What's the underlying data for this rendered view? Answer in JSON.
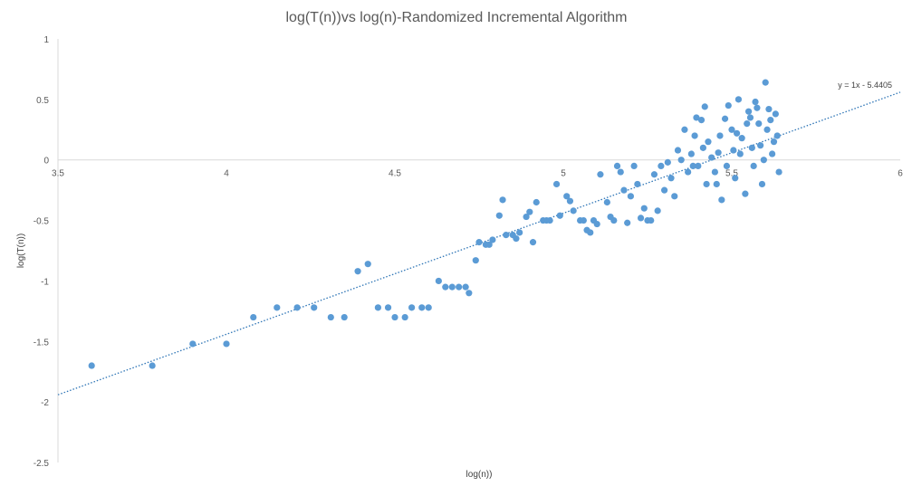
{
  "chart_data": {
    "type": "scatter",
    "title": "log(T(n))vs log(n)-Randomized Incremental Algorithm",
    "xlabel": "log(n))",
    "ylabel": "log(T(n))",
    "xlim": [
      3.5,
      6
    ],
    "ylim": [
      -2.5,
      1
    ],
    "xticks": [
      "3.5",
      "4",
      "4.5",
      "5",
      "5.5",
      "6"
    ],
    "yticks": [
      "1",
      "0.5",
      "0",
      "-0.5",
      "-1",
      "-1.5",
      "-2",
      "-2.5"
    ],
    "x_axis_crosses_at_y": 0,
    "grid": false,
    "legend": "none",
    "marker_color": "#5b9bd5",
    "trendline": {
      "type": "linear",
      "slope": 1,
      "intercept": -5.4405,
      "style": "dotted",
      "color": "#2e75b6",
      "equation_label": "y = 1x - 5.4405"
    },
    "series": [
      {
        "points": [
          [
            3.6,
            -1.7
          ],
          [
            3.78,
            -1.7
          ],
          [
            3.9,
            -1.52
          ],
          [
            4.0,
            -1.52
          ],
          [
            4.08,
            -1.3
          ],
          [
            4.15,
            -1.22
          ],
          [
            4.21,
            -1.22
          ],
          [
            4.26,
            -1.22
          ],
          [
            4.31,
            -1.3
          ],
          [
            4.35,
            -1.3
          ],
          [
            4.39,
            -0.92
          ],
          [
            4.42,
            -0.86
          ],
          [
            4.45,
            -1.22
          ],
          [
            4.48,
            -1.22
          ],
          [
            4.5,
            -1.3
          ],
          [
            4.53,
            -1.3
          ],
          [
            4.55,
            -1.22
          ],
          [
            4.58,
            -1.22
          ],
          [
            4.6,
            -1.22
          ],
          [
            4.63,
            -1.0
          ],
          [
            4.65,
            -1.05
          ],
          [
            4.67,
            -1.05
          ],
          [
            4.69,
            -1.05
          ],
          [
            4.71,
            -1.05
          ],
          [
            4.72,
            -1.1
          ],
          [
            4.74,
            -0.83
          ],
          [
            4.75,
            -0.68
          ],
          [
            4.77,
            -0.7
          ],
          [
            4.78,
            -0.7
          ],
          [
            4.79,
            -0.66
          ],
          [
            4.81,
            -0.46
          ],
          [
            4.82,
            -0.33
          ],
          [
            4.83,
            -0.62
          ],
          [
            4.85,
            -0.62
          ],
          [
            4.86,
            -0.65
          ],
          [
            4.87,
            -0.6
          ],
          [
            4.89,
            -0.47
          ],
          [
            4.9,
            -0.43
          ],
          [
            4.91,
            -0.68
          ],
          [
            4.92,
            -0.35
          ],
          [
            4.94,
            -0.5
          ],
          [
            4.95,
            -0.5
          ],
          [
            4.96,
            -0.5
          ],
          [
            4.98,
            -0.2
          ],
          [
            4.99,
            -0.46
          ],
          [
            5.01,
            -0.3
          ],
          [
            5.02,
            -0.34
          ],
          [
            5.03,
            -0.42
          ],
          [
            5.05,
            -0.5
          ],
          [
            5.06,
            -0.5
          ],
          [
            5.07,
            -0.58
          ],
          [
            5.08,
            -0.6
          ],
          [
            5.09,
            -0.5
          ],
          [
            5.1,
            -0.53
          ],
          [
            5.11,
            -0.12
          ],
          [
            5.13,
            -0.35
          ],
          [
            5.14,
            -0.47
          ],
          [
            5.15,
            -0.5
          ],
          [
            5.16,
            -0.05
          ],
          [
            5.17,
            -0.1
          ],
          [
            5.18,
            -0.25
          ],
          [
            5.19,
            -0.52
          ],
          [
            5.2,
            -0.3
          ],
          [
            5.21,
            -0.05
          ],
          [
            5.22,
            -0.2
          ],
          [
            5.23,
            -0.48
          ],
          [
            5.24,
            -0.4
          ],
          [
            5.25,
            -0.5
          ],
          [
            5.26,
            -0.5
          ],
          [
            5.27,
            -0.12
          ],
          [
            5.28,
            -0.42
          ],
          [
            5.29,
            -0.05
          ],
          [
            5.3,
            -0.25
          ],
          [
            5.31,
            -0.02
          ],
          [
            5.32,
            -0.15
          ],
          [
            5.33,
            -0.3
          ],
          [
            5.34,
            0.08
          ],
          [
            5.35,
            0.0
          ],
          [
            5.36,
            0.25
          ],
          [
            5.37,
            -0.1
          ],
          [
            5.38,
            0.05
          ],
          [
            5.39,
            0.2
          ],
          [
            5.4,
            -0.05
          ],
          [
            5.41,
            0.33
          ],
          [
            5.42,
            0.44
          ],
          [
            5.43,
            0.15
          ],
          [
            5.44,
            0.02
          ],
          [
            5.45,
            -0.1
          ],
          [
            5.46,
            0.06
          ],
          [
            5.47,
            -0.33
          ],
          [
            5.48,
            0.34
          ],
          [
            5.49,
            0.45
          ],
          [
            5.5,
            0.25
          ],
          [
            5.51,
            -0.15
          ],
          [
            5.52,
            0.5
          ],
          [
            5.53,
            0.18
          ],
          [
            5.54,
            -0.28
          ],
          [
            5.55,
            0.4
          ],
          [
            5.56,
            0.1
          ],
          [
            5.57,
            0.48
          ],
          [
            5.58,
            0.3
          ],
          [
            5.59,
            -0.2
          ],
          [
            5.6,
            0.64
          ],
          [
            5.61,
            0.42
          ],
          [
            5.62,
            0.05
          ],
          [
            5.63,
            0.38
          ],
          [
            5.64,
            -0.1
          ],
          [
            5.635,
            0.2
          ],
          [
            5.415,
            0.1
          ],
          [
            5.455,
            -0.2
          ],
          [
            5.505,
            0.08
          ],
          [
            5.525,
            0.05
          ],
          [
            5.545,
            0.3
          ],
          [
            5.565,
            -0.05
          ],
          [
            5.585,
            0.12
          ],
          [
            5.605,
            0.25
          ],
          [
            5.385,
            -0.05
          ],
          [
            5.395,
            0.35
          ],
          [
            5.425,
            -0.2
          ],
          [
            5.465,
            0.2
          ],
          [
            5.485,
            -0.05
          ],
          [
            5.515,
            0.22
          ],
          [
            5.555,
            0.35
          ],
          [
            5.575,
            0.43
          ],
          [
            5.595,
            0.0
          ],
          [
            5.615,
            0.33
          ],
          [
            5.625,
            0.15
          ]
        ]
      }
    ]
  }
}
